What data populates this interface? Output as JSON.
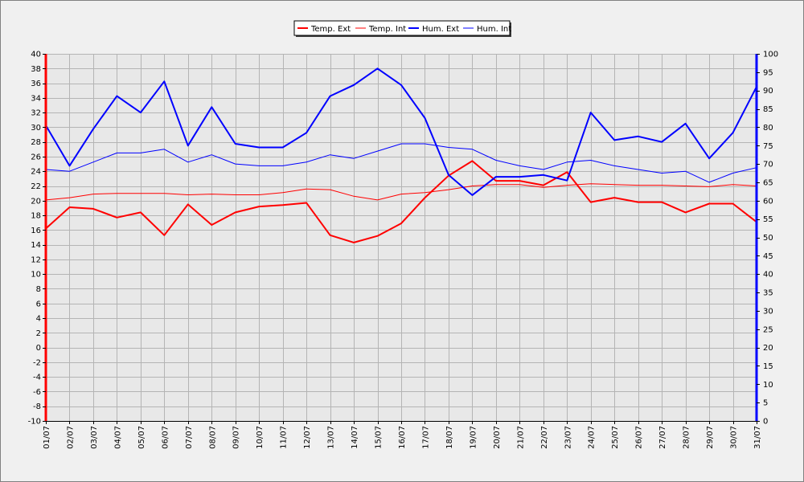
{
  "chart_data": {
    "type": "line",
    "title": "",
    "xlabel": "",
    "ylabel": "",
    "categories": [
      "01/07",
      "02/07",
      "03/07",
      "04/07",
      "05/07",
      "06/07",
      "07/07",
      "08/07",
      "09/07",
      "10/07",
      "11/07",
      "12/07",
      "13/07",
      "14/07",
      "15/07",
      "16/07",
      "17/07",
      "18/07",
      "19/07",
      "20/07",
      "21/07",
      "22/07",
      "23/07",
      "24/07",
      "25/07",
      "26/07",
      "27/07",
      "28/07",
      "29/07",
      "30/07",
      "31/07"
    ],
    "y_left": {
      "lim": [
        -10,
        40
      ],
      "step": 2,
      "color": "#ff0000"
    },
    "y_right": {
      "lim": [
        0,
        100
      ],
      "step": 5,
      "color": "#0000ff"
    },
    "grid": true,
    "legend_position": "top-center",
    "series": [
      {
        "name": "Temp. Ext",
        "axis": "left",
        "color": "#ff0000",
        "width": 2,
        "values": [
          16.2,
          19.1,
          18.9,
          17.7,
          18.4,
          15.3,
          19.5,
          16.7,
          18.4,
          19.2,
          19.4,
          19.7,
          15.3,
          14.3,
          15.2,
          16.9,
          20.4,
          23.4,
          25.4,
          22.7,
          22.7,
          22.1,
          23.9,
          19.8,
          20.4,
          19.8,
          19.8,
          18.4,
          19.6,
          19.6,
          17.1
        ]
      },
      {
        "name": "Temp. Int",
        "axis": "left",
        "color": "#ff0000",
        "width": 1,
        "values": [
          20.1,
          20.4,
          20.9,
          21.0,
          21.0,
          21.0,
          20.8,
          20.9,
          20.8,
          20.8,
          21.1,
          21.6,
          21.5,
          20.6,
          20.1,
          20.9,
          21.1,
          21.5,
          22.0,
          22.2,
          22.2,
          21.8,
          22.1,
          22.3,
          22.2,
          22.1,
          22.1,
          22.0,
          21.9,
          22.2,
          22.0
        ]
      },
      {
        "name": "Hum. Ext",
        "axis": "right",
        "color": "#0000ff",
        "width": 2,
        "values": [
          80.5,
          69.5,
          79.5,
          88.5,
          84.0,
          92.5,
          75.0,
          85.5,
          75.5,
          74.5,
          74.5,
          78.5,
          88.5,
          91.5,
          96.0,
          91.5,
          82.5,
          67.0,
          61.5,
          66.5,
          66.5,
          67.0,
          65.5,
          84.0,
          76.5,
          77.5,
          76.0,
          81.0,
          71.5,
          78.5,
          91.0
        ]
      },
      {
        "name": "Hum. Int",
        "axis": "right",
        "color": "#0000ff",
        "width": 1,
        "values": [
          68.5,
          68.0,
          70.5,
          73.0,
          73.0,
          74.0,
          70.5,
          72.5,
          70.0,
          69.5,
          69.5,
          70.5,
          72.5,
          71.5,
          73.5,
          75.5,
          75.5,
          74.5,
          74.0,
          71.0,
          69.5,
          68.5,
          70.5,
          71.0,
          69.5,
          68.5,
          67.5,
          68.0,
          65.0,
          67.5,
          69.0
        ]
      }
    ]
  }
}
